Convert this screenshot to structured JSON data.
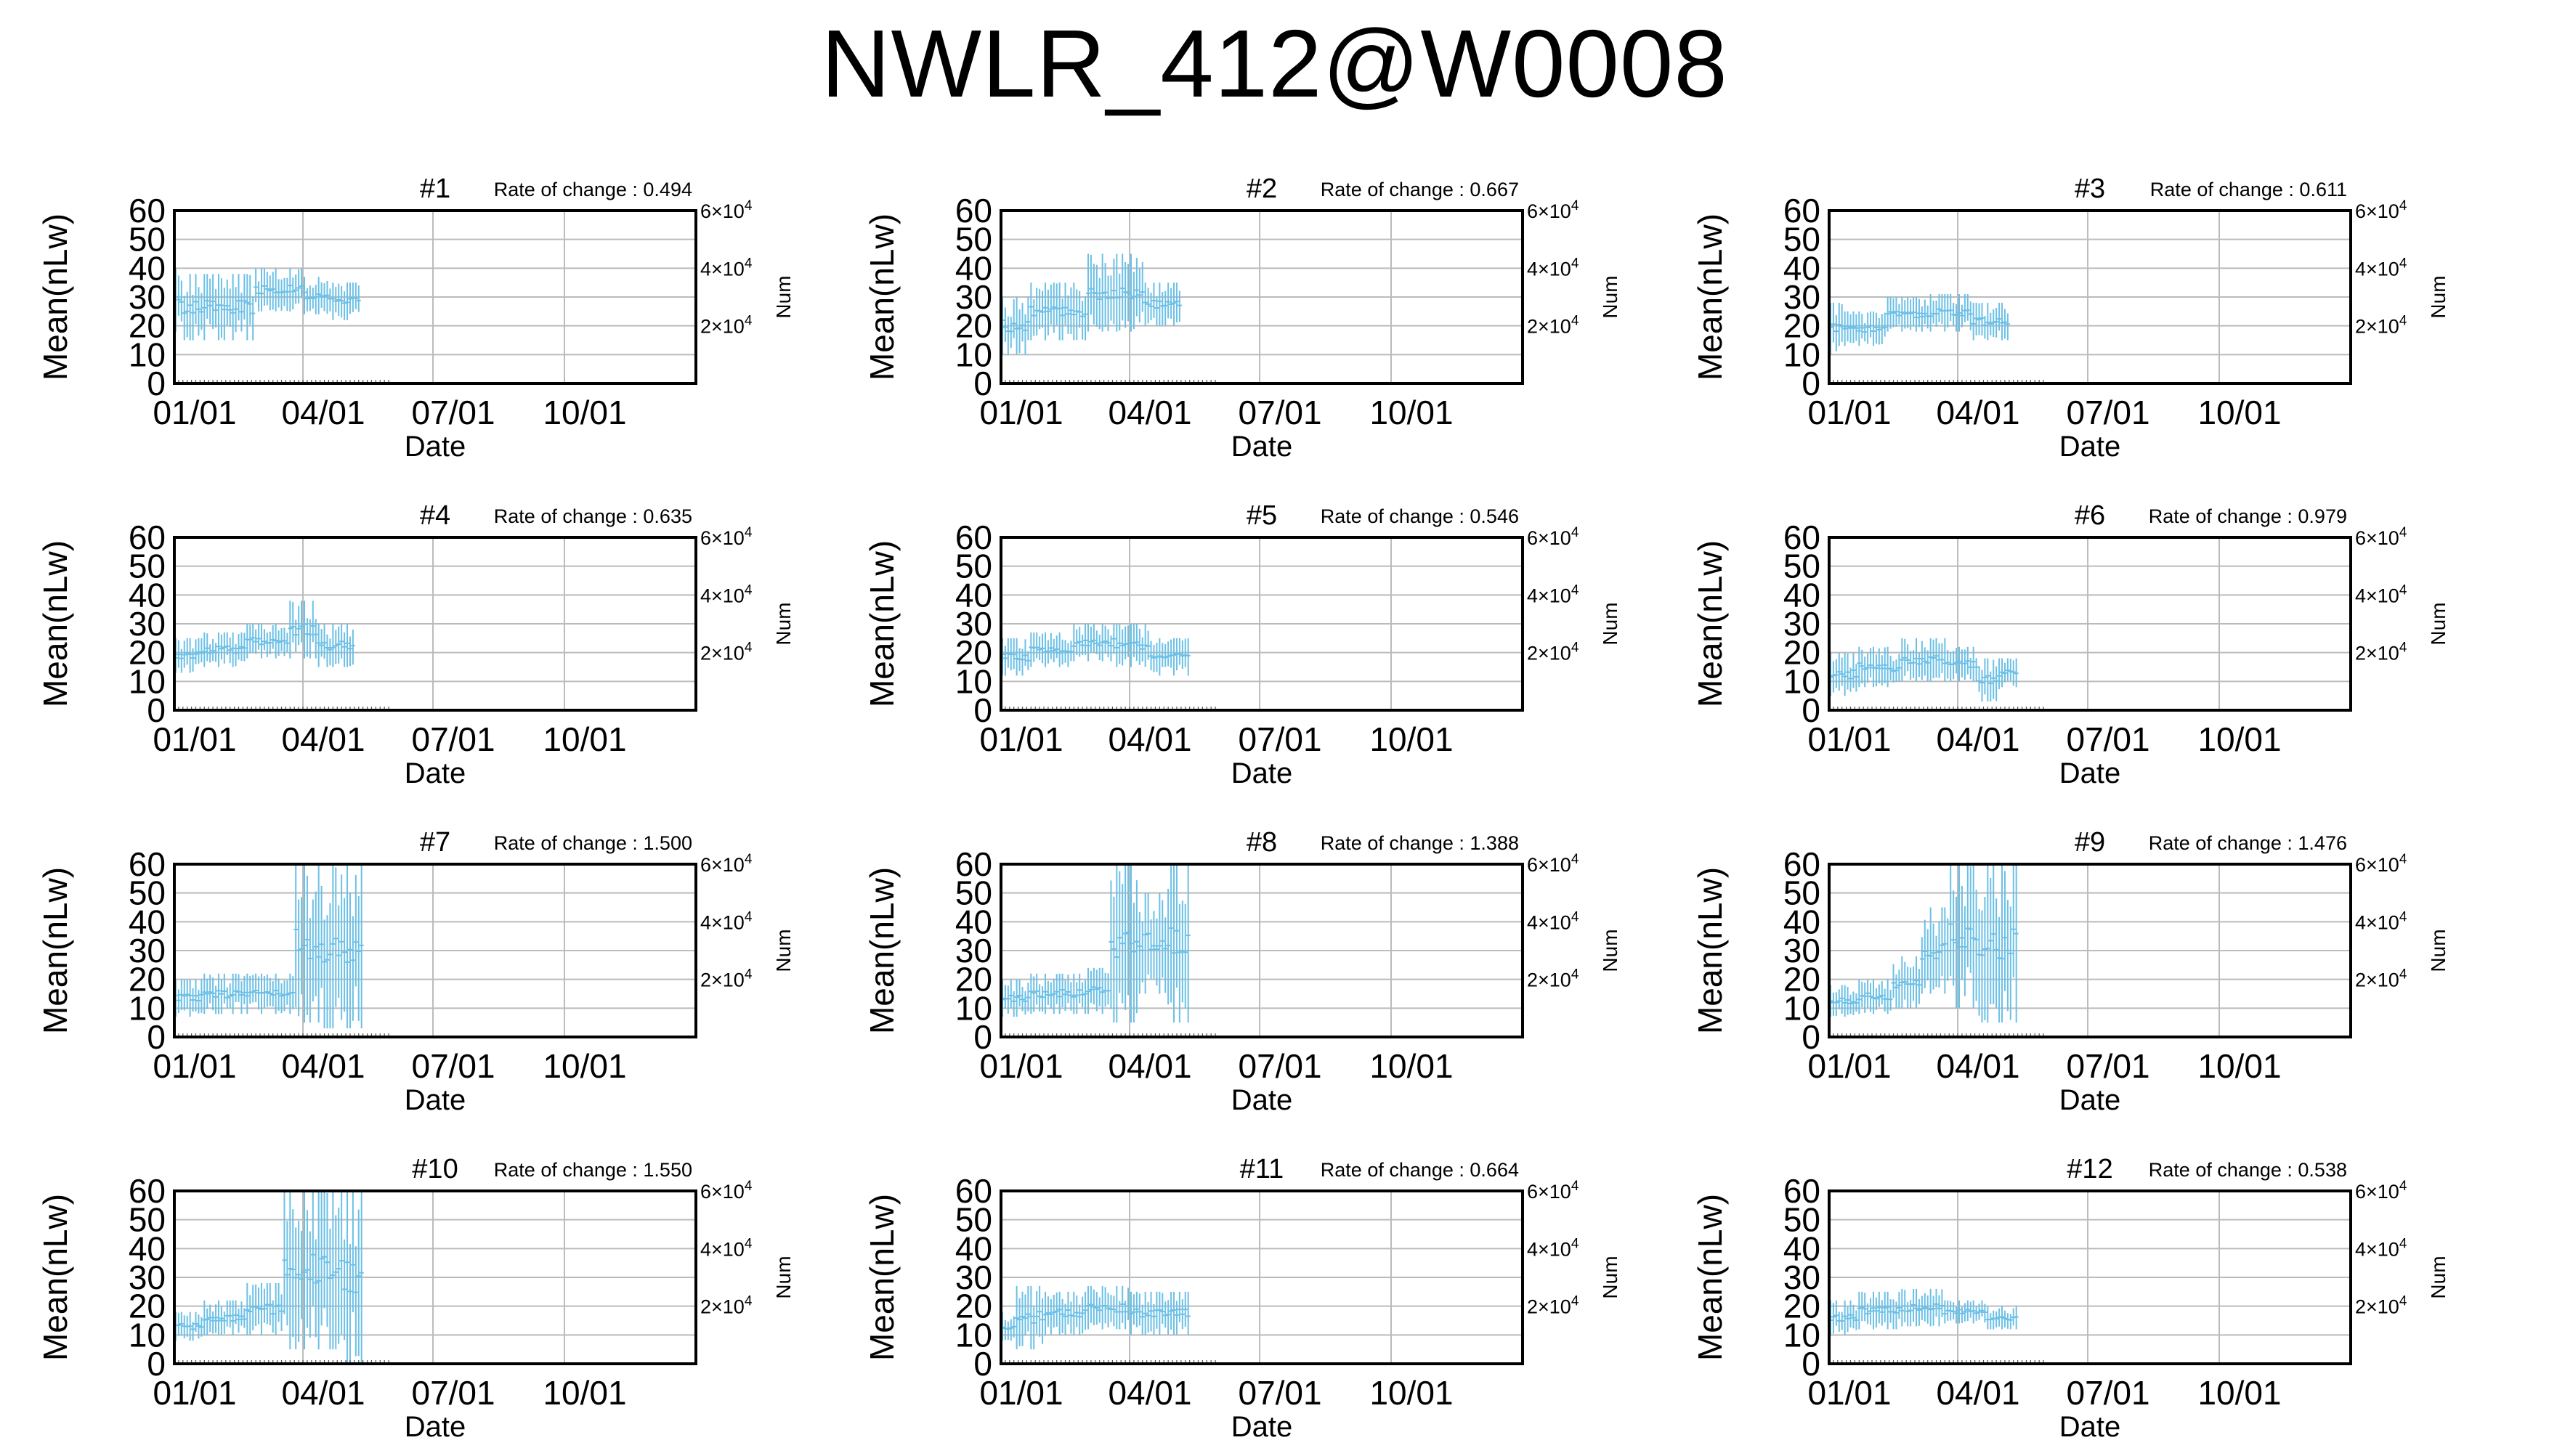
{
  "title": "NWLR_412@W0008",
  "common": {
    "ylabel": "Mean(nLw)",
    "ylabel_right": "Num",
    "xlabel": "Date",
    "ylim": [
      0,
      60
    ],
    "yticks": [
      0,
      10,
      20,
      30,
      40,
      50,
      60
    ],
    "right_ticks": [
      {
        "base": "2×10",
        "exp": "4"
      },
      {
        "base": "4×10",
        "exp": "4"
      },
      {
        "base": "6×10",
        "exp": "4"
      }
    ],
    "xticks": [
      "01/01",
      "04/01",
      "07/01",
      "10/01"
    ],
    "rate_prefix": "Rate of change : ",
    "grid": true,
    "bar_color": "#6cc0e6"
  },
  "chart_data": [
    {
      "type": "errorbar",
      "title": "#1",
      "rate": "0.494",
      "segments": [
        [
          0,
          3,
          18,
          40
        ],
        [
          3,
          28,
          15,
          38
        ],
        [
          28,
          45,
          25,
          40
        ],
        [
          45,
          55,
          24,
          37
        ],
        [
          55,
          65,
          22,
          35
        ]
      ]
    },
    {
      "type": "errorbar",
      "title": "#2",
      "rate": "0.667",
      "segments": [
        [
          0,
          10,
          10,
          30
        ],
        [
          10,
          30,
          15,
          35
        ],
        [
          30,
          50,
          18,
          45
        ],
        [
          50,
          63,
          20,
          35
        ]
      ]
    },
    {
      "type": "errorbar",
      "title": "#3",
      "rate": "0.611",
      "segments": [
        [
          0,
          5,
          10,
          28
        ],
        [
          5,
          20,
          13,
          25
        ],
        [
          20,
          35,
          18,
          30
        ],
        [
          35,
          50,
          18,
          31
        ],
        [
          50,
          63,
          15,
          28
        ]
      ]
    },
    {
      "type": "errorbar",
      "title": "#4",
      "rate": "0.635",
      "segments": [
        [
          0,
          10,
          13,
          25
        ],
        [
          10,
          25,
          15,
          27
        ],
        [
          25,
          40,
          18,
          30
        ],
        [
          40,
          50,
          18,
          38
        ],
        [
          50,
          63,
          15,
          30
        ]
      ]
    },
    {
      "type": "errorbar",
      "title": "#5",
      "rate": "0.546",
      "segments": [
        [
          0,
          10,
          12,
          25
        ],
        [
          10,
          25,
          15,
          27
        ],
        [
          25,
          40,
          17,
          30
        ],
        [
          40,
          52,
          15,
          30
        ],
        [
          52,
          66,
          12,
          25
        ]
      ]
    },
    {
      "type": "errorbar",
      "title": "#6",
      "rate": "0.979",
      "segments": [
        [
          0,
          10,
          5,
          20
        ],
        [
          10,
          25,
          8,
          22
        ],
        [
          25,
          42,
          10,
          25
        ],
        [
          42,
          52,
          10,
          22
        ],
        [
          52,
          60,
          3,
          18
        ],
        [
          60,
          66,
          8,
          18
        ]
      ]
    },
    {
      "type": "errorbar",
      "title": "#7",
      "rate": "1.500",
      "segments": [
        [
          0,
          10,
          7,
          20
        ],
        [
          10,
          28,
          8,
          22
        ],
        [
          28,
          42,
          8,
          22
        ],
        [
          42,
          52,
          5,
          60
        ],
        [
          52,
          66,
          3,
          60
        ]
      ]
    },
    {
      "type": "errorbar",
      "title": "#8",
      "rate": "1.388",
      "segments": [
        [
          0,
          10,
          7,
          20
        ],
        [
          10,
          28,
          8,
          22
        ],
        [
          28,
          38,
          8,
          24
        ],
        [
          38,
          48,
          5,
          60
        ],
        [
          48,
          58,
          15,
          50
        ],
        [
          58,
          66,
          5,
          60
        ]
      ]
    },
    {
      "type": "errorbar",
      "title": "#9",
      "rate": "1.476",
      "segments": [
        [
          0,
          10,
          7,
          18
        ],
        [
          10,
          22,
          8,
          20
        ],
        [
          22,
          32,
          10,
          28
        ],
        [
          32,
          42,
          15,
          45
        ],
        [
          42,
          52,
          10,
          60
        ],
        [
          52,
          66,
          5,
          60
        ]
      ]
    },
    {
      "type": "errorbar",
      "title": "#10",
      "rate": "1.550",
      "segments": [
        [
          0,
          10,
          8,
          18
        ],
        [
          10,
          25,
          10,
          22
        ],
        [
          25,
          38,
          10,
          28
        ],
        [
          38,
          48,
          5,
          60
        ],
        [
          48,
          58,
          5,
          60
        ],
        [
          58,
          66,
          0,
          60
        ]
      ]
    },
    {
      "type": "errorbar",
      "title": "#11",
      "rate": "0.664",
      "segments": [
        [
          0,
          5,
          8,
          18
        ],
        [
          5,
          15,
          5,
          27
        ],
        [
          15,
          30,
          10,
          25
        ],
        [
          30,
          45,
          12,
          27
        ],
        [
          45,
          66,
          10,
          25
        ]
      ]
    },
    {
      "type": "errorbar",
      "title": "#12",
      "rate": "0.538",
      "segments": [
        [
          0,
          10,
          10,
          22
        ],
        [
          10,
          25,
          12,
          25
        ],
        [
          25,
          40,
          13,
          26
        ],
        [
          40,
          55,
          14,
          22
        ],
        [
          55,
          66,
          12,
          20
        ]
      ]
    }
  ]
}
